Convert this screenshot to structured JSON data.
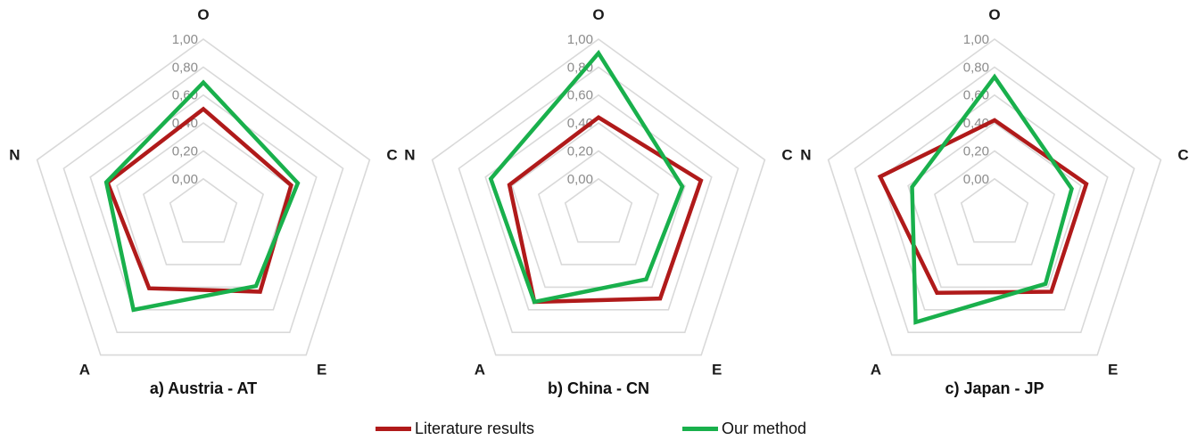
{
  "legend": {
    "items": [
      {
        "label": "Literature results",
        "color": "#b01a1a"
      },
      {
        "label": "Our method",
        "color": "#19b04c"
      }
    ]
  },
  "chart_data": [
    {
      "type": "radar",
      "title": "a) Austria - AT",
      "axes": [
        "O",
        "C",
        "E",
        "A",
        "N"
      ],
      "ticks": [
        "0,00",
        "0,20",
        "0,40",
        "0,60",
        "0,80",
        "1,00"
      ],
      "range": [
        0,
        1
      ],
      "series": [
        {
          "name": "Literature results",
          "values": [
            0.5,
            0.41,
            0.44,
            0.41,
            0.47
          ]
        },
        {
          "name": "Our method",
          "values": [
            0.69,
            0.46,
            0.39,
            0.6,
            0.48
          ]
        }
      ]
    },
    {
      "type": "radar",
      "title": "b) China - CN",
      "axes": [
        "O",
        "C",
        "E",
        "A",
        "N"
      ],
      "ticks": [
        "0,00",
        "0,20",
        "0,40",
        "0,60",
        "0,80",
        "1,00"
      ],
      "range": [
        0,
        1
      ],
      "series": [
        {
          "name": "Literature results",
          "values": [
            0.44,
            0.52,
            0.5,
            0.53,
            0.42
          ]
        },
        {
          "name": "Our method",
          "values": [
            0.9,
            0.38,
            0.33,
            0.53,
            0.56
          ]
        }
      ]
    },
    {
      "type": "radar",
      "title": "c) Japan - JP",
      "axes": [
        "O",
        "C",
        "E",
        "A",
        "N"
      ],
      "ticks": [
        "0,00",
        "0,20",
        "0,40",
        "0,60",
        "0,80",
        "1,00"
      ],
      "range": [
        0,
        1
      ],
      "series": [
        {
          "name": "Literature results",
          "values": [
            0.42,
            0.44,
            0.44,
            0.45,
            0.61
          ]
        },
        {
          "name": "Our method",
          "values": [
            0.73,
            0.33,
            0.37,
            0.71,
            0.37
          ]
        }
      ]
    }
  ]
}
